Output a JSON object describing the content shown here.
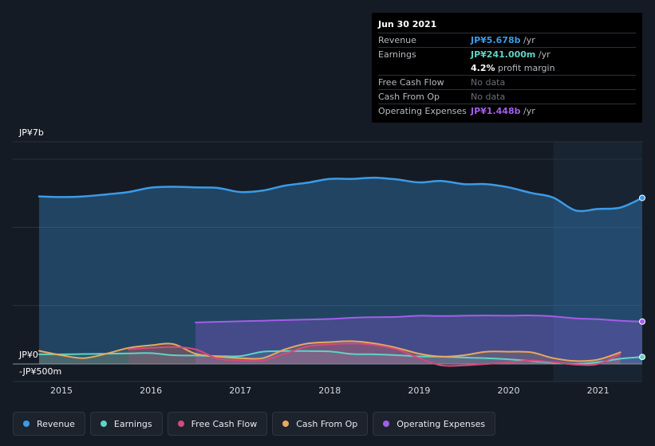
{
  "tooltip": {
    "date": "Jun 30 2021",
    "rows": [
      {
        "label": "Revenue",
        "value": "JP¥5.678b",
        "unit": "/yr",
        "color": "#3b9be8"
      },
      {
        "label": "Earnings",
        "value": "JP¥241.000m",
        "unit": "/yr",
        "color": "#5fd3c4"
      },
      {
        "label": "",
        "value": "4.2%",
        "unit": "profit margin",
        "color": "#ffffff"
      },
      {
        "label": "Free Cash Flow",
        "value": "No data",
        "unit": "",
        "color": ""
      },
      {
        "label": "Cash From Op",
        "value": "No data",
        "unit": "",
        "color": ""
      },
      {
        "label": "Operating Expenses",
        "value": "JP¥1.448b",
        "unit": "/yr",
        "color": "#a35ee8"
      }
    ]
  },
  "legend": [
    {
      "label": "Revenue",
      "color": "#3b9be8"
    },
    {
      "label": "Earnings",
      "color": "#5fd3c4"
    },
    {
      "label": "Free Cash Flow",
      "color": "#d6497c"
    },
    {
      "label": "Cash From Op",
      "color": "#e8a95e"
    },
    {
      "label": "Operating Expenses",
      "color": "#a35ee8"
    }
  ],
  "chart_data": {
    "type": "area",
    "y_unit": "JP¥ (billions)",
    "ylim": [
      -0.5,
      7
    ],
    "y_tick_labels": [
      {
        "value": 7,
        "label": "JP¥7b"
      },
      {
        "value": 0,
        "label": "JP¥0"
      },
      {
        "value": -0.5,
        "label": "-JP¥500m"
      }
    ],
    "x_tick_labels": [
      "2015",
      "2016",
      "2017",
      "2018",
      "2019",
      "2020",
      "2021"
    ],
    "x_ticks": [
      2015,
      2016,
      2017,
      2018,
      2019,
      2020,
      2021
    ],
    "xlim": [
      2014.5,
      2021.5
    ],
    "forecast_start": 2020.5,
    "grid": true,
    "legend_position": "bottom",
    "series": [
      {
        "name": "Revenue",
        "color": "#3b9be8",
        "x": [
          2014.75,
          2015.0,
          2015.25,
          2015.5,
          2015.75,
          2016.0,
          2016.25,
          2016.5,
          2016.75,
          2017.0,
          2017.25,
          2017.5,
          2017.75,
          2018.0,
          2018.25,
          2018.5,
          2018.75,
          2019.0,
          2019.25,
          2019.5,
          2019.75,
          2020.0,
          2020.25,
          2020.5,
          2020.75,
          2021.0,
          2021.25,
          2021.5
        ],
        "values": [
          5.73,
          5.71,
          5.73,
          5.8,
          5.88,
          6.03,
          6.06,
          6.04,
          6.02,
          5.88,
          5.93,
          6.1,
          6.2,
          6.33,
          6.33,
          6.37,
          6.31,
          6.21,
          6.26,
          6.15,
          6.15,
          6.04,
          5.85,
          5.69,
          5.25,
          5.3,
          5.35,
          5.68
        ]
      },
      {
        "name": "Earnings",
        "color": "#5fd3c4",
        "x": [
          2014.75,
          2015.0,
          2015.25,
          2015.5,
          2015.75,
          2016.0,
          2016.25,
          2016.5,
          2016.75,
          2017.0,
          2017.25,
          2017.5,
          2017.75,
          2018.0,
          2018.25,
          2018.5,
          2018.75,
          2019.0,
          2019.25,
          2019.5,
          2019.75,
          2020.0,
          2020.25,
          2020.5,
          2020.75,
          2021.0,
          2021.25,
          2021.5
        ],
        "values": [
          0.33,
          0.33,
          0.34,
          0.35,
          0.36,
          0.37,
          0.3,
          0.29,
          0.27,
          0.27,
          0.42,
          0.44,
          0.44,
          0.43,
          0.34,
          0.33,
          0.3,
          0.26,
          0.25,
          0.22,
          0.2,
          0.16,
          0.1,
          0.04,
          0.0,
          0.06,
          0.18,
          0.24
        ]
      },
      {
        "name": "Free Cash Flow",
        "color": "#d6497c",
        "x": [
          2015.75,
          2016.0,
          2016.25,
          2016.5,
          2016.75,
          2017.0,
          2017.25,
          2017.5,
          2017.75,
          2018.0,
          2018.25,
          2018.5,
          2018.75,
          2019.0,
          2019.25,
          2019.5,
          2019.75,
          2020.0,
          2020.25,
          2020.5,
          2020.75,
          2021.0,
          2021.25
        ],
        "values": [
          0.5,
          0.55,
          0.58,
          0.5,
          0.18,
          0.12,
          0.12,
          0.35,
          0.6,
          0.67,
          0.7,
          0.65,
          0.5,
          0.2,
          -0.05,
          -0.05,
          0.0,
          0.05,
          0.12,
          0.06,
          -0.02,
          0.0,
          0.35
        ]
      },
      {
        "name": "Cash From Op",
        "color": "#e8a95e",
        "x": [
          2014.75,
          2015.0,
          2015.25,
          2015.5,
          2015.75,
          2016.0,
          2016.25,
          2016.5,
          2016.75,
          2017.0,
          2017.25,
          2017.5,
          2017.75,
          2018.0,
          2018.25,
          2018.5,
          2018.75,
          2019.0,
          2019.25,
          2019.5,
          2019.75,
          2020.0,
          2020.25,
          2020.5,
          2020.75,
          2021.0,
          2021.25
        ],
        "values": [
          0.45,
          0.3,
          0.2,
          0.35,
          0.55,
          0.64,
          0.68,
          0.35,
          0.25,
          0.2,
          0.2,
          0.5,
          0.7,
          0.75,
          0.78,
          0.7,
          0.55,
          0.35,
          0.25,
          0.3,
          0.42,
          0.42,
          0.4,
          0.2,
          0.1,
          0.15,
          0.4
        ]
      },
      {
        "name": "Operating Expenses",
        "color": "#a35ee8",
        "x": [
          2016.5,
          2016.75,
          2017.0,
          2017.25,
          2017.5,
          2017.75,
          2018.0,
          2018.25,
          2018.5,
          2018.75,
          2019.0,
          2019.25,
          2019.5,
          2019.75,
          2020.0,
          2020.25,
          2020.5,
          2020.75,
          2021.0,
          2021.25,
          2021.5
        ],
        "values": [
          1.42,
          1.44,
          1.46,
          1.48,
          1.5,
          1.52,
          1.54,
          1.58,
          1.6,
          1.61,
          1.65,
          1.64,
          1.65,
          1.66,
          1.65,
          1.66,
          1.63,
          1.56,
          1.53,
          1.48,
          1.45
        ]
      }
    ]
  }
}
